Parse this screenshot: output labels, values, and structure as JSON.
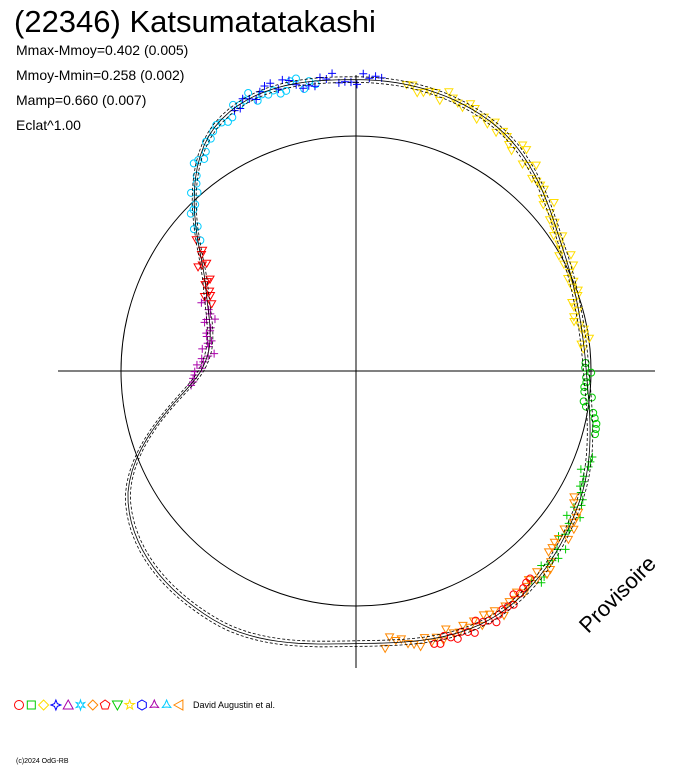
{
  "header": {
    "title": "(22346) Katsumatatakashi",
    "stats": [
      "Mmax-Mmoy=0.402 (0.005)",
      "Mmoy-Mmin=0.258 (0.002)",
      "Mamp=0.660 (0.007)",
      "Eclat^1.00"
    ]
  },
  "watermark": "Provisoire",
  "legend": {
    "symbols": [
      "circle",
      "square",
      "diamond",
      "star4",
      "triangle",
      "star6",
      "diamond-cross",
      "pentagon",
      "triangle-down",
      "star5",
      "hexagon",
      "star3",
      "flower",
      "triangle-left"
    ],
    "colors": [
      "#ff0000",
      "#00cc00",
      "#ffdd00",
      "#0000ff",
      "#aa00aa",
      "#00ccff",
      "#ff8800",
      "#ff0000",
      "#00cc00",
      "#ffdd00",
      "#0000ff",
      "#aa00aa",
      "#00ccff",
      "#ff8800"
    ],
    "credit": "David Augustin et al."
  },
  "copyright": "(c)2024 OdG-RB",
  "chart_data": {
    "type": "polar-lightcurve",
    "title": "(22346) Katsumatatakashi",
    "reference_circle_radius_mag": 0.5,
    "model_curve": {
      "phase_deg": [
        0,
        30,
        60,
        90,
        120,
        150,
        180,
        210,
        240,
        270,
        300,
        330,
        360
      ],
      "mag_offset": [
        0.62,
        0.6,
        0.51,
        0.49,
        0.55,
        0.6,
        0.58,
        0.61,
        0.56,
        0.33,
        0.37,
        0.6,
        0.62
      ]
    },
    "observation_series": [
      {
        "color": "#ffdd00",
        "phase_start": 10,
        "phase_end": 85
      },
      {
        "color": "#00cc00",
        "phase_start": 88,
        "phase_end": 105
      },
      {
        "color": "#00cc00",
        "phase_start": 110,
        "phase_end": 140
      },
      {
        "color": "#ff8800",
        "phase_start": 120,
        "phase_end": 175
      },
      {
        "color": "#ff0000",
        "phase_start": 140,
        "phase_end": 165
      },
      {
        "color": "#aa00aa",
        "phase_start": 265,
        "phase_end": 295
      },
      {
        "color": "#ff0000",
        "phase_start": 295,
        "phase_end": 310
      },
      {
        "color": "#00ccff",
        "phase_start": 310,
        "phase_end": 352
      },
      {
        "color": "#0000ff",
        "phase_start": 335,
        "phase_end": 365
      }
    ]
  }
}
